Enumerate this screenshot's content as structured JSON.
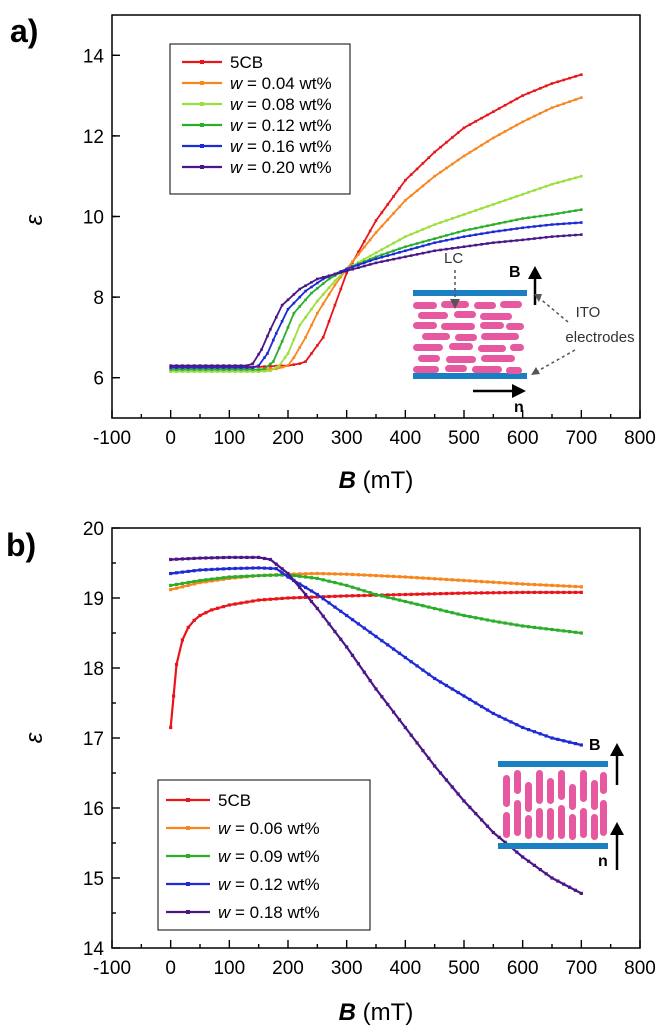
{
  "chart_data": [
    {
      "type": "line",
      "panel_label": "a)",
      "xlabel_symbol": "B",
      "xlabel_unit": " (mT)",
      "ylabel": "ε",
      "xlim": [
        -100,
        800
      ],
      "ylim": [
        5,
        15
      ],
      "x_ticks": [
        -100,
        0,
        100,
        200,
        300,
        400,
        500,
        600,
        700,
        800
      ],
      "y_ticks": [
        6,
        8,
        10,
        12,
        14
      ],
      "legend_position": "top-left",
      "series": [
        {
          "name": "5CB",
          "color": "#e8151b",
          "x": [
            0,
            50,
            100,
            150,
            200,
            220,
            230,
            260,
            280,
            300,
            350,
            400,
            450,
            500,
            550,
            600,
            650,
            700
          ],
          "values": [
            6.27,
            6.27,
            6.27,
            6.27,
            6.3,
            6.35,
            6.4,
            7.0,
            7.8,
            8.6,
            9.9,
            10.9,
            11.6,
            12.2,
            12.6,
            13.0,
            13.3,
            13.52
          ]
        },
        {
          "name": "w = 0.04 wt%",
          "color": "#f7861e",
          "x": [
            0,
            50,
            100,
            150,
            180,
            200,
            210,
            230,
            250,
            280,
            300,
            350,
            400,
            450,
            500,
            550,
            600,
            650,
            700
          ],
          "values": [
            6.2,
            6.2,
            6.2,
            6.2,
            6.22,
            6.3,
            6.5,
            7.0,
            7.6,
            8.3,
            8.7,
            9.6,
            10.4,
            11.0,
            11.5,
            11.95,
            12.35,
            12.7,
            12.95
          ]
        },
        {
          "name": "w = 0.08 wt%",
          "color": "#9ae03c",
          "x": [
            0,
            50,
            100,
            150,
            170,
            185,
            200,
            220,
            250,
            280,
            300,
            350,
            400,
            450,
            500,
            550,
            600,
            650,
            700
          ],
          "values": [
            6.15,
            6.15,
            6.15,
            6.15,
            6.17,
            6.3,
            6.6,
            7.3,
            7.9,
            8.4,
            8.7,
            9.1,
            9.5,
            9.8,
            10.05,
            10.3,
            10.55,
            10.8,
            11.0
          ]
        },
        {
          "name": "w = 0.12 wt%",
          "color": "#2bae2b",
          "x": [
            0,
            50,
            100,
            150,
            160,
            175,
            190,
            210,
            240,
            270,
            300,
            350,
            400,
            450,
            500,
            550,
            600,
            650,
            700
          ],
          "values": [
            6.2,
            6.2,
            6.2,
            6.2,
            6.22,
            6.4,
            6.9,
            7.6,
            8.1,
            8.45,
            8.7,
            9.0,
            9.25,
            9.45,
            9.65,
            9.8,
            9.95,
            10.05,
            10.17
          ]
        },
        {
          "name": "w = 0.16 wt%",
          "color": "#1d2bd6",
          "x": [
            0,
            50,
            100,
            140,
            150,
            165,
            180,
            200,
            230,
            260,
            300,
            350,
            400,
            450,
            500,
            550,
            600,
            650,
            700
          ],
          "values": [
            6.25,
            6.25,
            6.25,
            6.25,
            6.3,
            6.6,
            7.1,
            7.7,
            8.15,
            8.45,
            8.7,
            8.95,
            9.15,
            9.35,
            9.5,
            9.62,
            9.72,
            9.8,
            9.85
          ]
        },
        {
          "name": "w = 0.20 wt%",
          "color": "#4b1687",
          "x": [
            0,
            50,
            100,
            130,
            140,
            155,
            170,
            190,
            220,
            250,
            300,
            350,
            400,
            450,
            500,
            550,
            600,
            650,
            700
          ],
          "values": [
            6.3,
            6.3,
            6.3,
            6.3,
            6.35,
            6.7,
            7.2,
            7.8,
            8.2,
            8.45,
            8.65,
            8.85,
            9.0,
            9.15,
            9.25,
            9.35,
            9.42,
            9.5,
            9.55
          ]
        }
      ]
    },
    {
      "type": "line",
      "panel_label": "b)",
      "xlabel_symbol": "B",
      "xlabel_unit": " (mT)",
      "ylabel": "ε",
      "xlim": [
        -100,
        800
      ],
      "ylim": [
        14,
        20
      ],
      "x_ticks": [
        -100,
        0,
        100,
        200,
        300,
        400,
        500,
        600,
        700,
        800
      ],
      "y_ticks": [
        14,
        15,
        16,
        17,
        18,
        19,
        20
      ],
      "legend_position": "bottom-left",
      "series": [
        {
          "name": "5CB",
          "color": "#e8151b",
          "x": [
            0,
            5,
            10,
            20,
            30,
            40,
            50,
            70,
            100,
            150,
            200,
            300,
            400,
            500,
            600,
            700
          ],
          "values": [
            17.15,
            17.6,
            18.05,
            18.4,
            18.58,
            18.68,
            18.75,
            18.83,
            18.9,
            18.97,
            19.0,
            19.03,
            19.05,
            19.07,
            19.08,
            19.08
          ]
        },
        {
          "name": "w = 0.06 wt%",
          "color": "#f7861e",
          "x": [
            0,
            50,
            100,
            150,
            200,
            250,
            300,
            400,
            500,
            600,
            700
          ],
          "values": [
            19.12,
            19.22,
            19.28,
            19.32,
            19.34,
            19.35,
            19.34,
            19.3,
            19.25,
            19.2,
            19.16
          ]
        },
        {
          "name": "w = 0.09 wt%",
          "color": "#2bae2b",
          "x": [
            0,
            50,
            100,
            150,
            200,
            250,
            300,
            350,
            400,
            450,
            500,
            550,
            600,
            650,
            700
          ],
          "values": [
            19.18,
            19.25,
            19.3,
            19.32,
            19.33,
            19.28,
            19.18,
            19.05,
            18.95,
            18.85,
            18.75,
            18.67,
            18.6,
            18.55,
            18.5
          ]
        },
        {
          "name": "w = 0.12 wt%",
          "color": "#1d2bd6",
          "x": [
            0,
            50,
            100,
            150,
            180,
            200,
            250,
            300,
            350,
            400,
            450,
            500,
            550,
            600,
            650,
            700
          ],
          "values": [
            19.35,
            19.4,
            19.42,
            19.43,
            19.42,
            19.3,
            19.05,
            18.75,
            18.45,
            18.15,
            17.85,
            17.6,
            17.35,
            17.15,
            17.0,
            16.9
          ]
        },
        {
          "name": "w = 0.18 wt%",
          "color": "#4b1687",
          "x": [
            0,
            50,
            100,
            150,
            170,
            200,
            250,
            300,
            350,
            400,
            450,
            500,
            550,
            600,
            650,
            700
          ],
          "values": [
            19.55,
            19.57,
            19.58,
            19.58,
            19.55,
            19.35,
            18.85,
            18.3,
            17.7,
            17.15,
            16.6,
            16.1,
            15.65,
            15.3,
            15.0,
            14.78
          ]
        }
      ]
    }
  ],
  "insets": {
    "a": {
      "field_label": "B",
      "director_label": "n",
      "lc_label": "LC",
      "ito_label_line1": "ITO",
      "ito_label_line2": "electrodes",
      "rod_color": "#e6589f",
      "plate_color": "#1b7fc4"
    },
    "b": {
      "field_label": "B",
      "director_label": "n",
      "rod_color": "#e6589f",
      "plate_color": "#1b7fc4"
    }
  }
}
